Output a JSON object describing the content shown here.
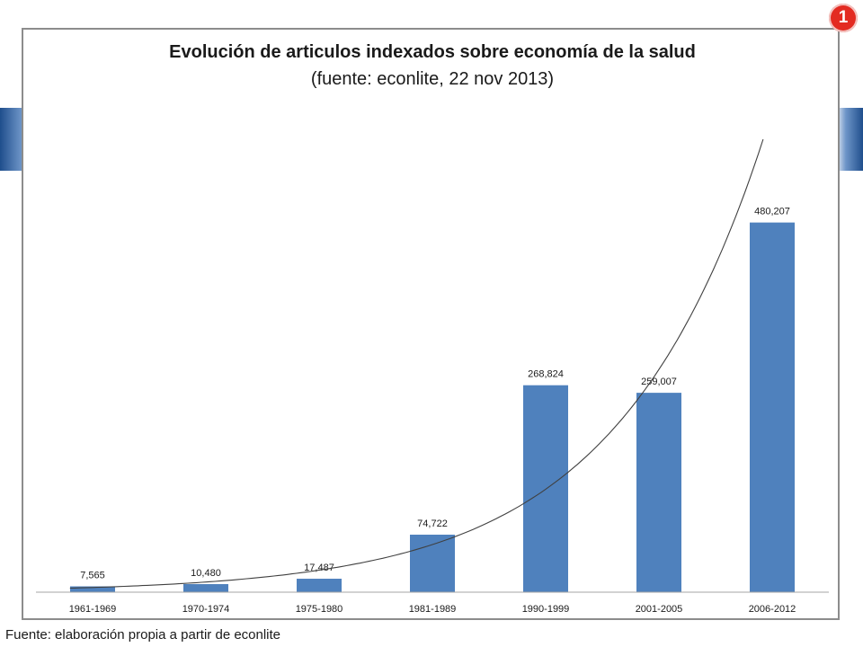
{
  "badge": {
    "text": "1",
    "color": "#e32b22"
  },
  "footer": {
    "text": "Fuente: elaboración propia a partir de econlite"
  },
  "chart_data": {
    "type": "bar",
    "title": "Evolución de articulos indexados sobre economía de la salud",
    "subtitle": "(fuente: econlite, 22 nov 2013)",
    "categories": [
      "1961-1969",
      "1970-1974",
      "1975-1980",
      "1981-1989",
      "1990-1999",
      "2001-2005",
      "2006-2012"
    ],
    "values": [
      7565,
      10480,
      17487,
      74722,
      268824,
      259007,
      480207
    ],
    "data_labels": [
      "7,565",
      "10,480",
      "17,487",
      "74,722",
      "268,824",
      "259,007",
      "480,207"
    ],
    "ylim": [
      0,
      600000
    ],
    "grid": false,
    "trendline": "exponential",
    "bar_color": "#4f81bd",
    "trend_color": "#404040"
  }
}
